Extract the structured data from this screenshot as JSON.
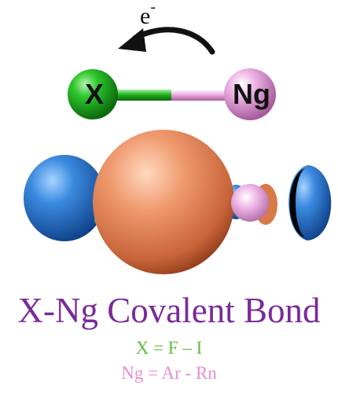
{
  "electron": {
    "symbol": "e",
    "superscript": "-"
  },
  "atoms": {
    "x_label": "X",
    "ng_label": "Ng"
  },
  "title": "X-Ng Covalent Bond",
  "ranges": {
    "x_range": "X = F – I",
    "ng_range": "Ng = Ar - Rn"
  },
  "colors": {
    "x_atom": "#21b321",
    "ng_atom": "#e7a6dc",
    "lobe_orange": "#e8956a",
    "lobe_blue": "#2f7fd0",
    "title": "#7a2a99",
    "x_range": "#5fbf3a",
    "ng_range": "#e58fd2"
  }
}
